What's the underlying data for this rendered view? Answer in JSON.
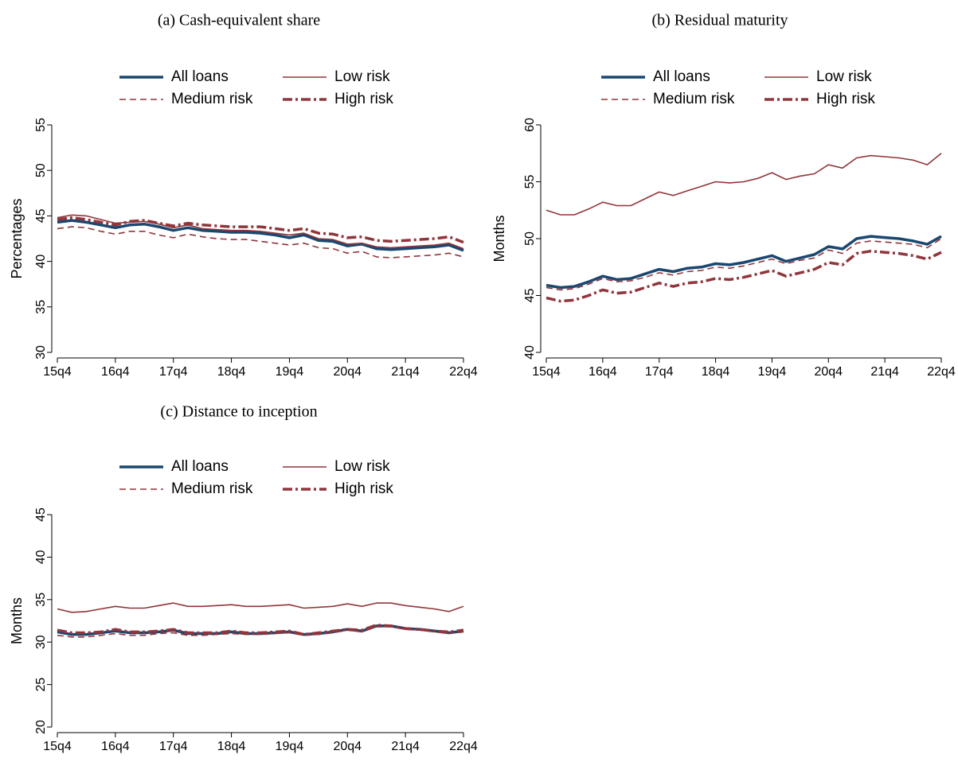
{
  "chart_data": [
    {
      "type": "line",
      "title": "(a) Cash-equivalent share",
      "ylabel": "Percentages",
      "categories": [
        "15q4",
        null,
        null,
        null,
        "16q4",
        null,
        null,
        null,
        "17q4",
        null,
        null,
        null,
        "18q4",
        null,
        null,
        null,
        "19q4",
        null,
        null,
        null,
        "20q4",
        null,
        null,
        null,
        "21q4",
        null,
        null,
        null,
        "22q4"
      ],
      "ylim": [
        30,
        55
      ],
      "yticks": [
        30,
        35,
        40,
        45,
        50,
        55
      ],
      "series": [
        {
          "name": "All loans",
          "color": "#1a476f",
          "linestyle": "solid",
          "weight": "thick",
          "values": [
            44.3,
            44.5,
            44.3,
            44.0,
            43.7,
            44.0,
            44.1,
            43.8,
            43.4,
            43.7,
            43.4,
            43.3,
            43.2,
            43.2,
            43.1,
            42.9,
            42.6,
            42.9,
            42.3,
            42.2,
            41.7,
            41.9,
            41.4,
            41.3,
            41.4,
            41.5,
            41.6,
            41.8,
            41.2
          ]
        },
        {
          "name": "Low risk",
          "color": "#90353b",
          "linestyle": "solid",
          "weight": "thin",
          "values": [
            44.8,
            45.1,
            45.0,
            44.6,
            44.2,
            44.3,
            44.4,
            44.1,
            43.7,
            44.0,
            43.6,
            43.5,
            43.4,
            43.4,
            43.3,
            43.1,
            42.9,
            43.1,
            42.5,
            42.4,
            41.9,
            42.0,
            41.6,
            41.5,
            41.6,
            41.7,
            41.8,
            42.0,
            41.4
          ]
        },
        {
          "name": "Medium risk",
          "color": "#90353b",
          "linestyle": "dash",
          "weight": "thin",
          "values": [
            43.6,
            43.8,
            43.7,
            43.3,
            43.0,
            43.3,
            43.3,
            42.9,
            42.6,
            43.0,
            42.7,
            42.5,
            42.4,
            42.4,
            42.2,
            42.0,
            41.8,
            42.0,
            41.5,
            41.4,
            40.9,
            41.1,
            40.5,
            40.4,
            40.5,
            40.6,
            40.7,
            40.9,
            40.5
          ]
        },
        {
          "name": "High risk",
          "color": "#90353b",
          "linestyle": "dashdot",
          "weight": "thick",
          "values": [
            44.6,
            44.8,
            44.6,
            44.3,
            44.0,
            44.4,
            44.5,
            44.2,
            43.9,
            44.2,
            44.0,
            43.9,
            43.8,
            43.8,
            43.8,
            43.6,
            43.4,
            43.6,
            43.1,
            43.0,
            42.6,
            42.7,
            42.3,
            42.2,
            42.3,
            42.4,
            42.5,
            42.7,
            42.1
          ]
        }
      ]
    },
    {
      "type": "line",
      "title": "(b) Residual maturity",
      "ylabel": "Months",
      "categories": [
        "15q4",
        null,
        null,
        null,
        "16q4",
        null,
        null,
        null,
        "17q4",
        null,
        null,
        null,
        "18q4",
        null,
        null,
        null,
        "19q4",
        null,
        null,
        null,
        "20q4",
        null,
        null,
        null,
        "21q4",
        null,
        null,
        null,
        "22q4"
      ],
      "ylim": [
        40,
        60
      ],
      "yticks": [
        40,
        45,
        50,
        55,
        60
      ],
      "series": [
        {
          "name": "All loans",
          "color": "#1a476f",
          "linestyle": "solid",
          "weight": "thick",
          "values": [
            45.9,
            45.7,
            45.8,
            46.2,
            46.7,
            46.4,
            46.5,
            46.9,
            47.3,
            47.1,
            47.4,
            47.5,
            47.8,
            47.7,
            47.9,
            48.2,
            48.5,
            48.0,
            48.3,
            48.6,
            49.3,
            49.1,
            50.0,
            50.2,
            50.1,
            50.0,
            49.8,
            49.5,
            50.2
          ]
        },
        {
          "name": "Low risk",
          "color": "#90353b",
          "linestyle": "solid",
          "weight": "thin",
          "values": [
            52.5,
            52.1,
            52.1,
            52.6,
            53.2,
            52.9,
            52.9,
            53.5,
            54.1,
            53.8,
            54.2,
            54.6,
            55.0,
            54.9,
            55.0,
            55.3,
            55.8,
            55.2,
            55.5,
            55.7,
            56.5,
            56.2,
            57.1,
            57.3,
            57.2,
            57.1,
            56.9,
            56.5,
            57.5
          ]
        },
        {
          "name": "Medium risk",
          "color": "#90353b",
          "linestyle": "dash",
          "weight": "thin",
          "values": [
            45.7,
            45.5,
            45.6,
            46.0,
            46.5,
            46.2,
            46.3,
            46.6,
            47.0,
            46.8,
            47.1,
            47.2,
            47.5,
            47.4,
            47.6,
            47.9,
            48.2,
            47.8,
            48.1,
            48.3,
            49.0,
            48.7,
            49.6,
            49.8,
            49.7,
            49.6,
            49.5,
            49.2,
            50.0
          ]
        },
        {
          "name": "High risk",
          "color": "#90353b",
          "linestyle": "dashdot",
          "weight": "thick",
          "values": [
            44.8,
            44.5,
            44.6,
            45.0,
            45.5,
            45.2,
            45.3,
            45.7,
            46.1,
            45.8,
            46.1,
            46.2,
            46.5,
            46.4,
            46.6,
            46.9,
            47.2,
            46.7,
            47.0,
            47.3,
            47.9,
            47.7,
            48.7,
            48.9,
            48.8,
            48.7,
            48.5,
            48.2,
            48.8
          ]
        }
      ]
    },
    {
      "type": "line",
      "title": "(c) Distance to inception",
      "ylabel": "Months",
      "categories": [
        "15q4",
        null,
        null,
        null,
        "16q4",
        null,
        null,
        null,
        "17q4",
        null,
        null,
        null,
        "18q4",
        null,
        null,
        null,
        "19q4",
        null,
        null,
        null,
        "20q4",
        null,
        null,
        null,
        "21q4",
        null,
        null,
        null,
        "22q4"
      ],
      "ylim": [
        20,
        45
      ],
      "yticks": [
        20,
        25,
        30,
        35,
        40,
        45
      ],
      "series": [
        {
          "name": "All loans",
          "color": "#1a476f",
          "linestyle": "solid",
          "weight": "thick",
          "values": [
            31.2,
            30.9,
            30.9,
            31.1,
            31.3,
            31.1,
            31.1,
            31.2,
            31.4,
            31.0,
            31.0,
            31.0,
            31.2,
            31.0,
            31.0,
            31.1,
            31.2,
            30.9,
            31.0,
            31.2,
            31.5,
            31.3,
            31.9,
            31.9,
            31.6,
            31.5,
            31.3,
            31.1,
            31.3
          ]
        },
        {
          "name": "Low risk",
          "color": "#90353b",
          "linestyle": "solid",
          "weight": "thin",
          "values": [
            33.9,
            33.5,
            33.6,
            33.9,
            34.2,
            34.0,
            34.0,
            34.3,
            34.6,
            34.2,
            34.2,
            34.3,
            34.4,
            34.2,
            34.2,
            34.3,
            34.4,
            34.0,
            34.1,
            34.2,
            34.5,
            34.2,
            34.6,
            34.6,
            34.3,
            34.1,
            33.9,
            33.6,
            34.2
          ]
        },
        {
          "name": "Medium risk",
          "color": "#90353b",
          "linestyle": "dash",
          "weight": "thin",
          "values": [
            30.8,
            30.6,
            30.6,
            30.8,
            31.0,
            30.8,
            30.8,
            31.0,
            31.1,
            30.8,
            30.8,
            30.9,
            31.0,
            30.9,
            30.9,
            31.0,
            31.1,
            30.8,
            30.9,
            31.1,
            31.4,
            31.2,
            31.8,
            31.8,
            31.5,
            31.4,
            31.2,
            31.0,
            31.2
          ]
        },
        {
          "name": "High risk",
          "color": "#90353b",
          "linestyle": "dashdot",
          "weight": "thick",
          "values": [
            31.4,
            31.1,
            31.1,
            31.2,
            31.5,
            31.2,
            31.2,
            31.3,
            31.5,
            31.1,
            31.1,
            31.1,
            31.3,
            31.1,
            31.1,
            31.2,
            31.3,
            30.9,
            31.1,
            31.3,
            31.5,
            31.4,
            32.0,
            31.9,
            31.6,
            31.5,
            31.3,
            31.2,
            31.4
          ]
        }
      ]
    }
  ]
}
